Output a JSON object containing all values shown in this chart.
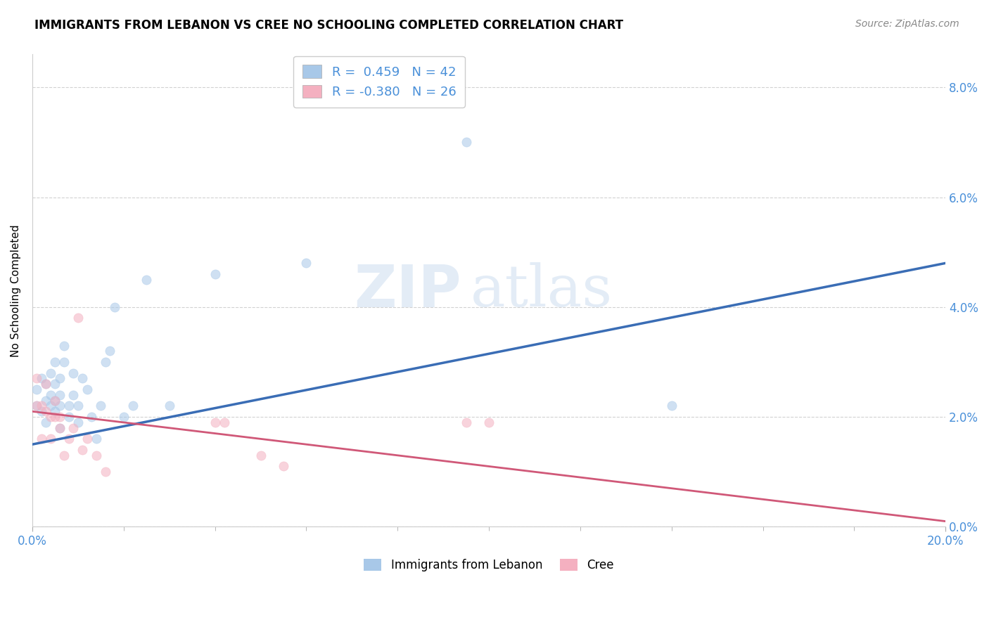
{
  "title": "IMMIGRANTS FROM LEBANON VS CREE NO SCHOOLING COMPLETED CORRELATION CHART",
  "source": "Source: ZipAtlas.com",
  "tick_color": "#4a90d9",
  "ylabel": "No Schooling Completed",
  "legend_blue_label": "Immigrants from Lebanon",
  "legend_pink_label": "Cree",
  "legend_blue_r": "R =  0.459",
  "legend_blue_n": "N = 42",
  "legend_pink_r": "R = -0.380",
  "legend_pink_n": "N = 26",
  "xlim": [
    0.0,
    0.2
  ],
  "ylim": [
    0.0,
    0.086
  ],
  "xticks_labeled": [
    0.0,
    0.2
  ],
  "xticks_minor": [
    0.02,
    0.04,
    0.06,
    0.08,
    0.1,
    0.12,
    0.14,
    0.16,
    0.18
  ],
  "yticks": [
    0.0,
    0.02,
    0.04,
    0.06,
    0.08
  ],
  "blue_scatter_x": [
    0.001,
    0.001,
    0.002,
    0.002,
    0.003,
    0.003,
    0.003,
    0.004,
    0.004,
    0.004,
    0.005,
    0.005,
    0.005,
    0.005,
    0.006,
    0.006,
    0.006,
    0.006,
    0.007,
    0.007,
    0.008,
    0.008,
    0.009,
    0.009,
    0.01,
    0.01,
    0.011,
    0.012,
    0.013,
    0.014,
    0.015,
    0.016,
    0.017,
    0.018,
    0.02,
    0.022,
    0.025,
    0.03,
    0.04,
    0.06,
    0.095,
    0.14
  ],
  "blue_scatter_y": [
    0.022,
    0.025,
    0.021,
    0.027,
    0.019,
    0.023,
    0.026,
    0.022,
    0.024,
    0.028,
    0.021,
    0.023,
    0.026,
    0.03,
    0.018,
    0.022,
    0.024,
    0.027,
    0.03,
    0.033,
    0.02,
    0.022,
    0.024,
    0.028,
    0.019,
    0.022,
    0.027,
    0.025,
    0.02,
    0.016,
    0.022,
    0.03,
    0.032,
    0.04,
    0.02,
    0.022,
    0.045,
    0.022,
    0.046,
    0.048,
    0.07,
    0.022
  ],
  "pink_scatter_x": [
    0.001,
    0.001,
    0.002,
    0.002,
    0.003,
    0.003,
    0.004,
    0.004,
    0.005,
    0.005,
    0.006,
    0.006,
    0.007,
    0.008,
    0.009,
    0.01,
    0.011,
    0.012,
    0.014,
    0.016,
    0.04,
    0.042,
    0.05,
    0.055,
    0.095,
    0.1
  ],
  "pink_scatter_y": [
    0.022,
    0.027,
    0.022,
    0.016,
    0.021,
    0.026,
    0.02,
    0.016,
    0.02,
    0.023,
    0.018,
    0.02,
    0.013,
    0.016,
    0.018,
    0.038,
    0.014,
    0.016,
    0.013,
    0.01,
    0.019,
    0.019,
    0.013,
    0.011,
    0.019,
    0.019
  ],
  "blue_line_x": [
    0.0,
    0.2
  ],
  "blue_line_y": [
    0.015,
    0.048
  ],
  "pink_line_x": [
    0.0,
    0.2
  ],
  "pink_line_y": [
    0.021,
    0.001
  ],
  "blue_color": "#a8c8e8",
  "pink_color": "#f4b0c0",
  "blue_line_color": "#3a6db5",
  "pink_line_color": "#d05878",
  "scatter_alpha": 0.55,
  "scatter_size": 90,
  "background_color": "#ffffff",
  "grid_color": "#cccccc",
  "watermark_zip": "ZIP",
  "watermark_atlas": "atlas",
  "watermark_color": "#ddeeff"
}
